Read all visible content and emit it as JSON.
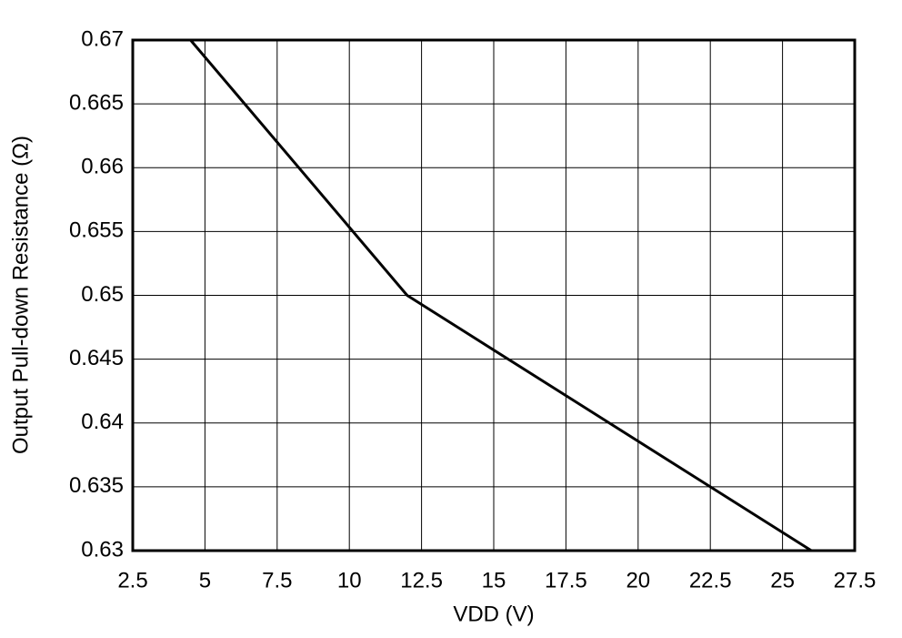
{
  "chart_data": {
    "type": "line",
    "x_label": "VDD (V)",
    "y_label": "Output Pull-down Resistance (Ω)",
    "series": [
      {
        "name": "Output Pull-down Resistance",
        "color": "#000000",
        "x": [
          4.5,
          12,
          26
        ],
        "values": [
          0.67,
          0.65,
          0.63
        ]
      }
    ],
    "xlim": [
      2.5,
      27.5
    ],
    "xticks": [
      2.5,
      5,
      7.5,
      10,
      12.5,
      15,
      17.5,
      20,
      22.5,
      25,
      27.5
    ],
    "ylim": [
      0.63,
      0.67
    ],
    "yticks": [
      0.63,
      0.635,
      0.64,
      0.645,
      0.65,
      0.655,
      0.66,
      0.665,
      0.67
    ],
    "grid": true
  }
}
